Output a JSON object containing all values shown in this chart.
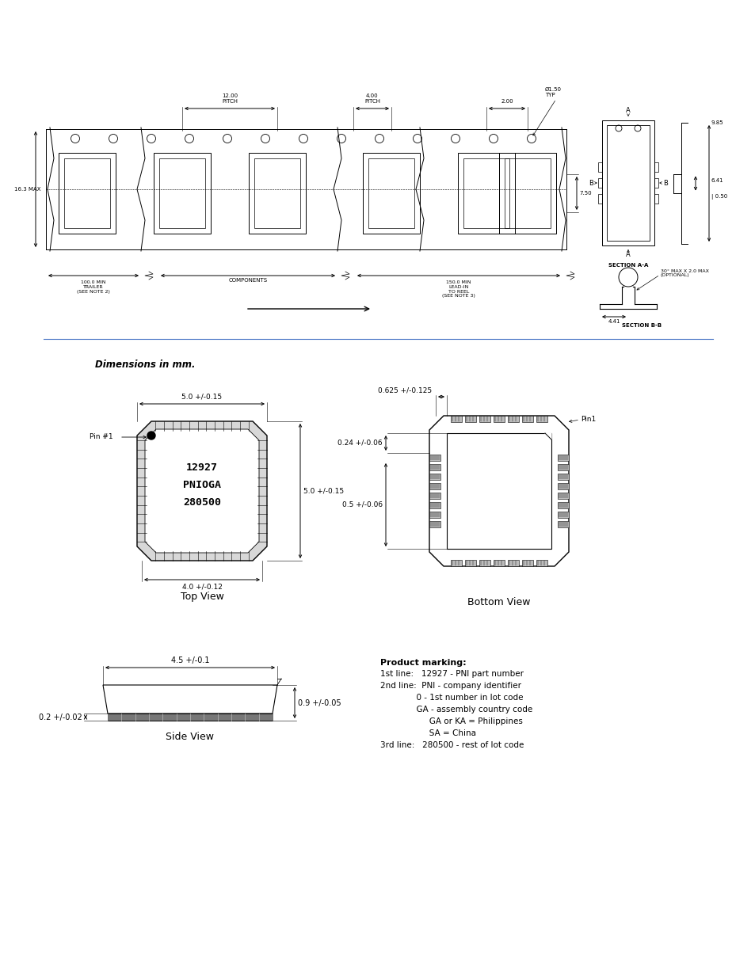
{
  "bg_color": "#ffffff",
  "line_color": "#000000",
  "divider_color": "#4472c4",
  "fig_width": 9.54,
  "fig_height": 12.35,
  "dpi": 100,
  "dimensions_label": "Dimensions in mm.",
  "top_view": {
    "label": "Top View",
    "width_dim": "5.0 +/-0.15",
    "height_dim": "5.0 +/-0.15",
    "bottom_dim": "4.0 +/-0.12",
    "pin_label": "Pin #1",
    "chip_text": "12927\nPNIOGA\n280500"
  },
  "bottom_view": {
    "label": "Bottom View",
    "top_dim": "0.625 +/-0.125",
    "left_dim1": "0.24 +/-0.06",
    "left_dim2": "0.5 +/-0.06",
    "pin_label": "Pin1"
  },
  "side_view": {
    "label": "Side View",
    "top_dim": "4.5 +/-0.1",
    "left_dim": "0.2 +/-0.02",
    "right_dim": "0.9 +/-0.05"
  },
  "tape_labels": {
    "pitch1": "12.00\nPITCH",
    "pitch2": "4.00\nPITCH",
    "dim_200": "2.00",
    "dim_diam": "Ø1.50\nTYP",
    "dim_750": "7.50",
    "dim_163": "16.3 MAX",
    "trailer": "100.0 MIN\nTRAILER\n(SEE NOTE 2)",
    "components": "COMPONENTS",
    "lead_in": "150.0 MIN\nLEAD-IN\nTO REEL\n(SEE NOTE 3)",
    "sec_aa": "SECTION A-A",
    "sec_bb": "SECTION B-B",
    "dim_985": "9.85",
    "dim_641": "6.41",
    "dim_050": "0.50",
    "dim_441": "4.41",
    "dim_30deg": "30° MAX X 2.0 MAX\n(OPTIONAL)"
  },
  "product_marking": {
    "title": "Product marking:",
    "line1": "1st line:   12927 - PNI part number",
    "line2": "2nd line:  PNI - company identifier",
    "line3": "              0 - 1st number in lot code",
    "line4": "              GA - assembly country code",
    "line5": "                   GA or KA = Philippines",
    "line6": "                   SA = China",
    "line7": "3rd line:   280500 - rest of lot code"
  }
}
